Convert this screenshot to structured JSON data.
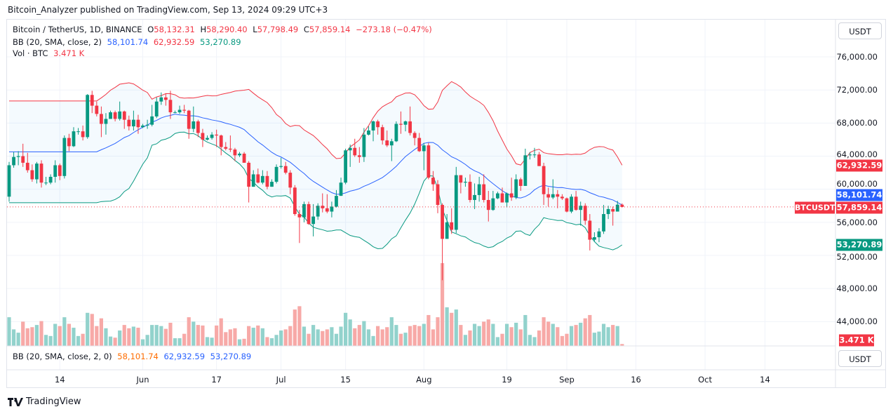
{
  "publisher_line": "Bitcoin_Analyzer published on TradingView.com, Sep 13, 2024 09:29 UTC+3",
  "legend": {
    "symbol": "Bitcoin / TetherUS, 1D, BINANCE",
    "open_label": "O",
    "open": "58,132.31",
    "high_label": "H",
    "high": "58,290.40",
    "low_label": "L",
    "low": "57,798.49",
    "close_label": "C",
    "close": "57,859.14",
    "change": "−273.18 (−0.47%)",
    "bb_label": "BB (20, SMA, close, 2)",
    "bb_basis": "58,101.74",
    "bb_upper": "62,932.59",
    "bb_lower": "53,270.89",
    "vol_label": "Vol · BTC",
    "vol_value": "3.471 K"
  },
  "lower_pane": {
    "label": "BB (20, SMA, close, 2, 0)",
    "basis": "58,101.74",
    "upper": "62,932.59",
    "lower": "53,270.89",
    "currency_button": "USDT"
  },
  "price_axis": {
    "currency_button": "USDT",
    "labels": [
      "76,000.00",
      "72,000.00",
      "68,000.00",
      "64,000.00",
      "60,000.00",
      "56,000.00",
      "52,000.00",
      "48,000.00",
      "44,000.00"
    ],
    "badges": {
      "bb_upper": "62,932.59",
      "bb_basis": "58,101.74",
      "last_price": "57,859.14",
      "bb_lower": "53,270.89",
      "volume": "3.471 K",
      "symbol": "BTCUSDT"
    }
  },
  "time_axis": {
    "ticks": [
      {
        "label": "14",
        "date": "2024-05-14"
      },
      {
        "label": "Jun",
        "date": "2024-06-01"
      },
      {
        "label": "17",
        "date": "2024-06-17"
      },
      {
        "label": "Jul",
        "date": "2024-07-01"
      },
      {
        "label": "15",
        "date": "2024-07-15"
      },
      {
        "label": "Aug",
        "date": "2024-08-01"
      },
      {
        "label": "19",
        "date": "2024-08-19"
      },
      {
        "label": "Sep",
        "date": "2024-09-01"
      },
      {
        "label": "16",
        "date": "2024-09-16"
      },
      {
        "label": "Oct",
        "date": "2024-10-01"
      },
      {
        "label": "14",
        "date": "2024-10-14"
      }
    ]
  },
  "branding": "TradingView",
  "colors": {
    "up": "#089981",
    "down": "#f23645",
    "vol_up": "#92d2cc",
    "vol_down": "#f7a9a7",
    "bb_basis": "#2962ff",
    "bb_upper": "#f23645",
    "bb_lower": "#089981",
    "bb_fill": "#2196f3"
  },
  "chart_data": {
    "type": "candlestick",
    "symbol": "BTCUSDT",
    "ylim": [
      42000,
      78000
    ],
    "grid": true,
    "indicators": [
      {
        "name": "BB",
        "period": 20,
        "stddev": 2,
        "source": "close"
      }
    ],
    "columns": [
      "date",
      "open",
      "high",
      "low",
      "close",
      "volume_k"
    ],
    "candles": [
      [
        "2024-05-03",
        59100,
        63300,
        58500,
        62900,
        52
      ],
      [
        "2024-05-04",
        62900,
        64500,
        62600,
        63900,
        30
      ],
      [
        "2024-05-05",
        63900,
        64600,
        62900,
        64000,
        24
      ],
      [
        "2024-05-06",
        64000,
        65500,
        62700,
        63200,
        44
      ],
      [
        "2024-05-07",
        63200,
        64400,
        62000,
        62300,
        32
      ],
      [
        "2024-05-08",
        62300,
        63000,
        60900,
        61200,
        34
      ],
      [
        "2024-05-09",
        61200,
        63300,
        60700,
        63100,
        38
      ],
      [
        "2024-05-10",
        63100,
        63500,
        60200,
        60800,
        45
      ],
      [
        "2024-05-11",
        60800,
        61500,
        60500,
        60800,
        20
      ],
      [
        "2024-05-12",
        60800,
        61800,
        60600,
        61500,
        18
      ],
      [
        "2024-05-13",
        61500,
        63500,
        60800,
        62900,
        40
      ],
      [
        "2024-05-14",
        62900,
        63100,
        61100,
        61600,
        36
      ],
      [
        "2024-05-15",
        61600,
        66500,
        61300,
        66200,
        52
      ],
      [
        "2024-05-16",
        66200,
        66700,
        64600,
        65200,
        40
      ],
      [
        "2024-05-17",
        65200,
        67500,
        65100,
        67000,
        33
      ],
      [
        "2024-05-18",
        67000,
        67400,
        66600,
        67000,
        18
      ],
      [
        "2024-05-19",
        67000,
        67700,
        65900,
        66300,
        22
      ],
      [
        "2024-05-20",
        66300,
        71500,
        66100,
        71400,
        60
      ],
      [
        "2024-05-21",
        71400,
        71900,
        69200,
        70100,
        58
      ],
      [
        "2024-05-22",
        70100,
        70600,
        68800,
        69100,
        36
      ],
      [
        "2024-05-23",
        69100,
        70000,
        66300,
        67900,
        50
      ],
      [
        "2024-05-24",
        67900,
        69200,
        66600,
        68500,
        32
      ],
      [
        "2024-05-25",
        68500,
        69500,
        68500,
        69300,
        17
      ],
      [
        "2024-05-26",
        69300,
        69500,
        68200,
        68500,
        15
      ],
      [
        "2024-05-27",
        68500,
        70600,
        68300,
        69400,
        28
      ],
      [
        "2024-05-28",
        69400,
        69500,
        67300,
        68400,
        38
      ],
      [
        "2024-05-29",
        68400,
        68900,
        67100,
        67600,
        32
      ],
      [
        "2024-05-30",
        67600,
        69500,
        67100,
        68400,
        35
      ],
      [
        "2024-05-31",
        68400,
        69000,
        66700,
        67500,
        33
      ],
      [
        "2024-06-01",
        67500,
        67900,
        67400,
        67700,
        12
      ],
      [
        "2024-06-02",
        67700,
        68400,
        67300,
        67800,
        20
      ],
      [
        "2024-06-03",
        67800,
        70200,
        67600,
        68800,
        38
      ],
      [
        "2024-06-04",
        68800,
        71100,
        68600,
        70600,
        38
      ],
      [
        "2024-06-05",
        70600,
        71700,
        70200,
        71100,
        36
      ],
      [
        "2024-06-06",
        71100,
        71600,
        70100,
        70800,
        31
      ],
      [
        "2024-06-07",
        70800,
        71900,
        68500,
        69300,
        42
      ],
      [
        "2024-06-08",
        69300,
        69500,
        69200,
        69300,
        14
      ],
      [
        "2024-06-09",
        69300,
        70100,
        69100,
        69600,
        14
      ],
      [
        "2024-06-10",
        69600,
        70200,
        69200,
        69500,
        22
      ],
      [
        "2024-06-11",
        69500,
        69600,
        66100,
        67300,
        52
      ],
      [
        "2024-06-12",
        67300,
        70000,
        66900,
        68200,
        44
      ],
      [
        "2024-06-13",
        68200,
        68400,
        66300,
        66800,
        38
      ],
      [
        "2024-06-14",
        66800,
        67300,
        65100,
        66000,
        37
      ],
      [
        "2024-06-15",
        66000,
        66500,
        65900,
        66200,
        16
      ],
      [
        "2024-06-16",
        66200,
        66900,
        66000,
        66600,
        15
      ],
      [
        "2024-06-17",
        66600,
        67200,
        65100,
        66500,
        37
      ],
      [
        "2024-06-18",
        66500,
        66600,
        64100,
        65100,
        50
      ],
      [
        "2024-06-19",
        65100,
        65700,
        64700,
        64900,
        25
      ],
      [
        "2024-06-20",
        64900,
        66500,
        64500,
        64800,
        30
      ],
      [
        "2024-06-21",
        64800,
        65000,
        63400,
        64100,
        32
      ],
      [
        "2024-06-22",
        64100,
        64500,
        63900,
        64300,
        12
      ],
      [
        "2024-06-23",
        64300,
        64500,
        63200,
        63200,
        13
      ],
      [
        "2024-06-24",
        63200,
        63400,
        58400,
        60300,
        36
      ],
      [
        "2024-06-25",
        60300,
        62300,
        60300,
        61800,
        33
      ],
      [
        "2024-06-26",
        61800,
        62500,
        60700,
        60800,
        37
      ],
      [
        "2024-06-27",
        60800,
        62300,
        60600,
        61600,
        32
      ],
      [
        "2024-06-28",
        61600,
        62200,
        60000,
        60300,
        16
      ],
      [
        "2024-06-29",
        60300,
        61200,
        60300,
        60900,
        14
      ],
      [
        "2024-06-30",
        60900,
        63000,
        60700,
        62700,
        20
      ],
      [
        "2024-07-01",
        62700,
        63800,
        62500,
        62800,
        28
      ],
      [
        "2024-07-02",
        62800,
        63300,
        61800,
        62000,
        30
      ],
      [
        "2024-07-03",
        62000,
        62300,
        59400,
        60200,
        36
      ],
      [
        "2024-07-04",
        60200,
        60500,
        56800,
        57000,
        66
      ],
      [
        "2024-07-05",
        57000,
        57500,
        53500,
        56600,
        72
      ],
      [
        "2024-07-06",
        56600,
        58500,
        56000,
        58200,
        35
      ],
      [
        "2024-07-07",
        58200,
        58500,
        55700,
        55800,
        22
      ],
      [
        "2024-07-08",
        55800,
        58200,
        54300,
        56700,
        38
      ],
      [
        "2024-07-09",
        56700,
        58300,
        56300,
        58000,
        30
      ],
      [
        "2024-07-10",
        58000,
        59500,
        57200,
        57700,
        27
      ],
      [
        "2024-07-11",
        57700,
        59400,
        57100,
        57300,
        30
      ],
      [
        "2024-07-12",
        57300,
        58500,
        56600,
        57900,
        34
      ],
      [
        "2024-07-13",
        57900,
        59900,
        57800,
        59200,
        22
      ],
      [
        "2024-07-14",
        59200,
        61400,
        59200,
        60800,
        35
      ],
      [
        "2024-07-15",
        60800,
        64900,
        60600,
        64700,
        60
      ],
      [
        "2024-07-16",
        64700,
        65400,
        62700,
        65000,
        48
      ],
      [
        "2024-07-17",
        65000,
        66100,
        63900,
        64100,
        32
      ],
      [
        "2024-07-18",
        64100,
        65100,
        63200,
        63900,
        38
      ],
      [
        "2024-07-19",
        63900,
        67400,
        63300,
        66600,
        45
      ],
      [
        "2024-07-20",
        66600,
        67600,
        66500,
        67100,
        30
      ],
      [
        "2024-07-21",
        67100,
        68300,
        65800,
        68200,
        18
      ],
      [
        "2024-07-22",
        68200,
        68400,
        66600,
        67500,
        36
      ],
      [
        "2024-07-23",
        67500,
        67800,
        65400,
        65900,
        30
      ],
      [
        "2024-07-24",
        65900,
        67100,
        65100,
        65300,
        34
      ],
      [
        "2024-07-25",
        65300,
        66100,
        63400,
        65800,
        52
      ],
      [
        "2024-07-26",
        65800,
        68200,
        65700,
        67900,
        38
      ],
      [
        "2024-07-27",
        67900,
        69400,
        66700,
        67800,
        22
      ],
      [
        "2024-07-28",
        67800,
        68300,
        67000,
        68200,
        24
      ],
      [
        "2024-07-29",
        68200,
        70000,
        66500,
        66800,
        36
      ],
      [
        "2024-07-30",
        66800,
        67000,
        65300,
        66200,
        38
      ],
      [
        "2024-07-31",
        66200,
        66800,
        64500,
        64600,
        36
      ],
      [
        "2024-08-01",
        64600,
        65600,
        62300,
        65300,
        40
      ],
      [
        "2024-08-02",
        65300,
        65600,
        61200,
        61400,
        56
      ],
      [
        "2024-08-03",
        61400,
        62200,
        59800,
        60600,
        30
      ],
      [
        "2024-08-04",
        60600,
        61100,
        57100,
        58100,
        52
      ],
      [
        "2024-08-05",
        58100,
        58300,
        49000,
        54000,
        150
      ],
      [
        "2024-08-06",
        54000,
        57000,
        54000,
        56000,
        70
      ],
      [
        "2024-08-07",
        56000,
        57700,
        54600,
        55100,
        60
      ],
      [
        "2024-08-08",
        55100,
        62700,
        54700,
        61700,
        66
      ],
      [
        "2024-08-09",
        61700,
        61700,
        59500,
        60800,
        38
      ],
      [
        "2024-08-10",
        60800,
        61400,
        60300,
        60900,
        20
      ],
      [
        "2024-08-11",
        60900,
        61800,
        58400,
        58700,
        28
      ],
      [
        "2024-08-12",
        58700,
        60700,
        57600,
        59300,
        40
      ],
      [
        "2024-08-13",
        59300,
        61500,
        58500,
        60600,
        36
      ],
      [
        "2024-08-14",
        60600,
        61800,
        58400,
        58700,
        44
      ],
      [
        "2024-08-15",
        58700,
        59800,
        56100,
        57500,
        48
      ],
      [
        "2024-08-16",
        57500,
        59800,
        57400,
        58900,
        40
      ],
      [
        "2024-08-17",
        58900,
        59700,
        58800,
        59500,
        16
      ],
      [
        "2024-08-18",
        59500,
        60200,
        58400,
        58400,
        22
      ],
      [
        "2024-08-19",
        58400,
        59600,
        57800,
        59500,
        40
      ],
      [
        "2024-08-20",
        59500,
        61400,
        58600,
        59000,
        34
      ],
      [
        "2024-08-21",
        59000,
        61800,
        58800,
        61200,
        42
      ],
      [
        "2024-08-22",
        61200,
        61400,
        59800,
        60400,
        30
      ],
      [
        "2024-08-23",
        60400,
        64900,
        60400,
        64100,
        56
      ],
      [
        "2024-08-24",
        64100,
        64500,
        63600,
        64200,
        20
      ],
      [
        "2024-08-25",
        64200,
        65000,
        63800,
        64200,
        16
      ],
      [
        "2024-08-26",
        64200,
        64500,
        62800,
        62800,
        28
      ],
      [
        "2024-08-27",
        62800,
        63200,
        58100,
        59400,
        52
      ],
      [
        "2024-08-28",
        59400,
        60200,
        57900,
        59000,
        44
      ],
      [
        "2024-08-29",
        59000,
        61200,
        58800,
        59400,
        40
      ],
      [
        "2024-08-30",
        59400,
        59900,
        57700,
        59100,
        34
      ],
      [
        "2024-08-31",
        59100,
        59400,
        58700,
        58900,
        18
      ],
      [
        "2024-09-01",
        58900,
        59000,
        57200,
        57300,
        22
      ],
      [
        "2024-09-02",
        57300,
        59400,
        57100,
        59100,
        36
      ],
      [
        "2024-09-03",
        59100,
        59800,
        57400,
        57500,
        38
      ],
      [
        "2024-09-04",
        57500,
        58500,
        55600,
        58000,
        42
      ],
      [
        "2024-09-05",
        58000,
        58300,
        55700,
        56200,
        50
      ],
      [
        "2024-09-06",
        56200,
        57000,
        52600,
        53900,
        56
      ],
      [
        "2024-09-07",
        53900,
        54800,
        53700,
        54200,
        24
      ],
      [
        "2024-09-08",
        54200,
        55300,
        53600,
        54900,
        26
      ],
      [
        "2024-09-09",
        54900,
        58100,
        54600,
        57000,
        40
      ],
      [
        "2024-09-10",
        57000,
        58000,
        56400,
        57600,
        34
      ],
      [
        "2024-09-11",
        57600,
        57900,
        55600,
        57300,
        38
      ],
      [
        "2024-09-12",
        57300,
        58600,
        57300,
        58132.31,
        36
      ],
      [
        "2024-09-13",
        58132.31,
        58290.4,
        57798.49,
        57859.14,
        3.471
      ]
    ]
  }
}
